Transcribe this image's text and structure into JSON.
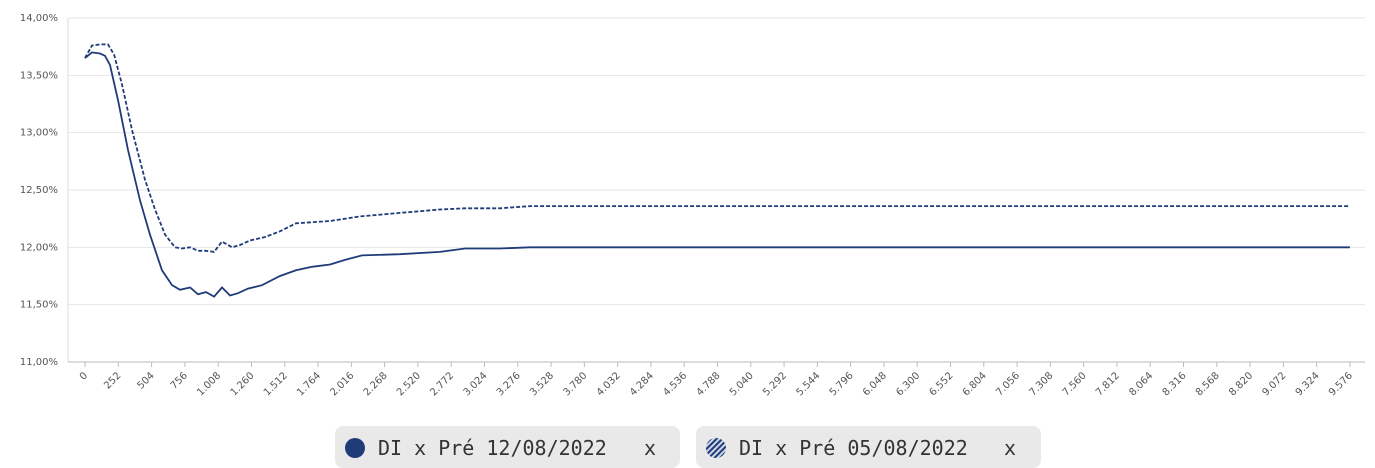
{
  "chart_data": {
    "type": "line",
    "xlim": [
      -129,
      9690
    ],
    "ylim": [
      11,
      14
    ],
    "yticks": [
      {
        "value": 11,
        "label": "11,00%"
      },
      {
        "value": 11.5,
        "label": "11,50%"
      },
      {
        "value": 12,
        "label": "12,00%"
      },
      {
        "value": 12.5,
        "label": "12,50%"
      },
      {
        "value": 13,
        "label": "13,00%"
      },
      {
        "value": 13.5,
        "label": "13,50%"
      },
      {
        "value": 14,
        "label": "14,00%"
      }
    ],
    "xticks": [
      0,
      252,
      504,
      756,
      {
        "value": 1008,
        "label": "1.008"
      },
      {
        "value": 1260,
        "label": "1.260"
      },
      {
        "value": 1512,
        "label": "1.512"
      },
      {
        "value": 1764,
        "label": "1.764"
      },
      {
        "value": 2016,
        "label": "2.016"
      },
      {
        "value": 2268,
        "label": "2.268"
      },
      {
        "value": 2520,
        "label": "2.520"
      },
      {
        "value": 2772,
        "label": "2.772"
      },
      {
        "value": 3024,
        "label": "3.024"
      },
      {
        "value": 3276,
        "label": "3.276"
      },
      {
        "value": 3528,
        "label": "3.528"
      },
      {
        "value": 3780,
        "label": "3.780"
      },
      {
        "value": 4032,
        "label": "4.032"
      },
      {
        "value": 4284,
        "label": "4.284"
      },
      {
        "value": 4536,
        "label": "4.536"
      },
      {
        "value": 4788,
        "label": "4.788"
      },
      {
        "value": 5040,
        "label": "5.040"
      },
      {
        "value": 5292,
        "label": "5.292"
      },
      {
        "value": 5544,
        "label": "5.544"
      },
      {
        "value": 5796,
        "label": "5.796"
      },
      {
        "value": 6048,
        "label": "6.048"
      },
      {
        "value": 6300,
        "label": "6.300"
      },
      {
        "value": 6552,
        "label": "6.552"
      },
      {
        "value": 6804,
        "label": "6.804"
      },
      {
        "value": 7056,
        "label": "7.056"
      },
      {
        "value": 7308,
        "label": "7.308"
      },
      {
        "value": 7560,
        "label": "7.560"
      },
      {
        "value": 7812,
        "label": "7.812"
      },
      {
        "value": 8064,
        "label": "8.064"
      },
      {
        "value": 8316,
        "label": "8.316"
      },
      {
        "value": 8568,
        "label": "8.568"
      },
      {
        "value": 8820,
        "label": "8.820"
      },
      {
        "value": 9072,
        "label": "9.072"
      },
      {
        "value": 9324,
        "label": "9.324"
      },
      {
        "value": 9576,
        "label": "9.576"
      }
    ],
    "grid": true,
    "legend_remove": "x",
    "series": [
      {
        "name": "DI x Pré 12/08/2022",
        "color": "#1f3c78",
        "line_style": "solid",
        "x": [
          0,
          53,
          114,
          151,
          189,
          250,
          325,
          416,
          492,
          583,
          659,
          719,
          795,
          855,
          916,
          977,
          1037,
          1098,
          1158,
          1234,
          1340,
          1476,
          1597,
          1718,
          1855,
          1968,
          2097,
          2385,
          2687,
          2877,
          3142,
          3369,
          9576
        ],
        "values": [
          13.65,
          13.7,
          13.69,
          13.67,
          13.59,
          13.28,
          12.85,
          12.41,
          12.11,
          11.8,
          11.67,
          11.63,
          11.65,
          11.59,
          11.61,
          11.57,
          11.65,
          11.58,
          11.6,
          11.64,
          11.67,
          11.75,
          11.8,
          11.83,
          11.85,
          11.89,
          11.93,
          11.94,
          11.96,
          11.99,
          11.99,
          12.0,
          12.0
        ]
      },
      {
        "name": "DI x Pré 05/08/2022",
        "color": "#1f3c78",
        "line_style": "dashed",
        "x": [
          0,
          53,
          114,
          174,
          220,
          280,
          356,
          454,
          530,
          606,
          681,
          734,
          795,
          855,
          916,
          977,
          1037,
          1113,
          1173,
          1249,
          1363,
          1476,
          1597,
          1855,
          2082,
          2385,
          2687,
          2877,
          3142,
          3369,
          9576
        ],
        "values": [
          13.65,
          13.76,
          13.77,
          13.77,
          13.68,
          13.42,
          13.02,
          12.59,
          12.33,
          12.11,
          12.0,
          11.99,
          12.0,
          11.97,
          11.97,
          11.96,
          12.05,
          12.0,
          12.02,
          12.06,
          12.09,
          12.14,
          12.21,
          12.23,
          12.27,
          12.3,
          12.33,
          12.34,
          12.34,
          12.36,
          12.36
        ]
      }
    ]
  }
}
